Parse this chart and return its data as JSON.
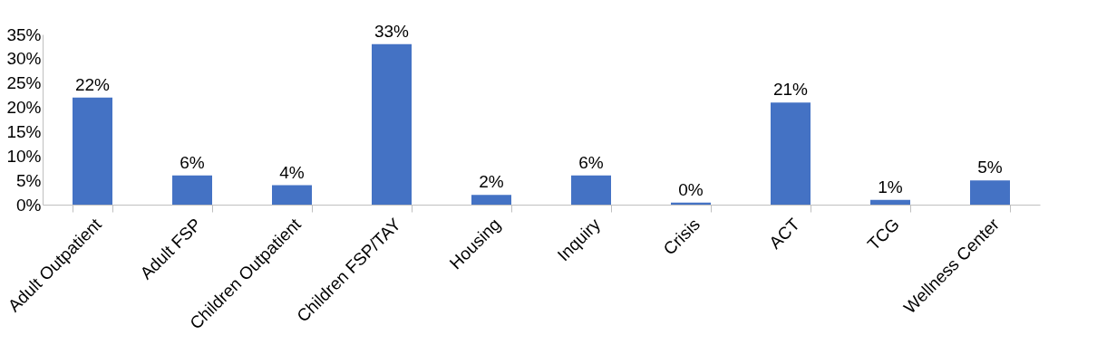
{
  "chart_data": {
    "type": "bar",
    "categories": [
      "Adult Outpatient",
      "Adult FSP",
      "Children Outpatient",
      "Children FSP/TAY",
      "Housing",
      "Inquiry",
      "Crisis",
      "ACT",
      "TCG",
      "Wellness Center"
    ],
    "values": [
      22,
      6,
      4,
      33,
      2,
      6,
      0.4,
      21,
      1,
      5
    ],
    "value_labels": [
      "22%",
      "6%",
      "4%",
      "33%",
      "2%",
      "6%",
      "0%",
      "21%",
      "1%",
      "5%"
    ],
    "color": "#4472c4",
    "ylim": [
      0,
      35
    ],
    "yticks": [
      {
        "value": 0,
        "label": "0%"
      },
      {
        "value": 5,
        "label": "5%"
      },
      {
        "value": 10,
        "label": "10%"
      },
      {
        "value": 15,
        "label": "15%"
      },
      {
        "value": 20,
        "label": "20%"
      },
      {
        "value": 25,
        "label": "25%"
      },
      {
        "value": 30,
        "label": "30%"
      },
      {
        "value": 35,
        "label": "35%"
      }
    ],
    "grid": false
  }
}
